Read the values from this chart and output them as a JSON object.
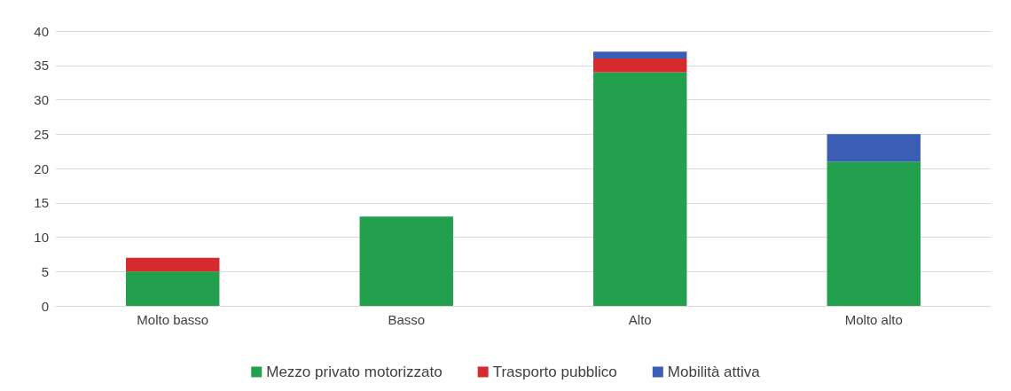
{
  "chart_data": {
    "type": "bar",
    "stacked": true,
    "categories": [
      "Molto basso",
      "Basso",
      "Alto",
      "Molto alto"
    ],
    "series": [
      {
        "name": "Mezzo privato motorizzato",
        "color": "#22a04e",
        "values": [
          5,
          13,
          34,
          21
        ]
      },
      {
        "name": "Trasporto pubblico",
        "color": "#d52a2e",
        "values": [
          2,
          null,
          2,
          null
        ]
      },
      {
        "name": "Mobilità attiva",
        "color": "#3b5db3",
        "values": [
          null,
          null,
          1,
          4
        ]
      }
    ],
    "ylim": [
      0,
      40
    ],
    "yticks": [
      0,
      5,
      10,
      15,
      20,
      25,
      30,
      35,
      40
    ],
    "grid": "y",
    "legend": "bottom"
  }
}
